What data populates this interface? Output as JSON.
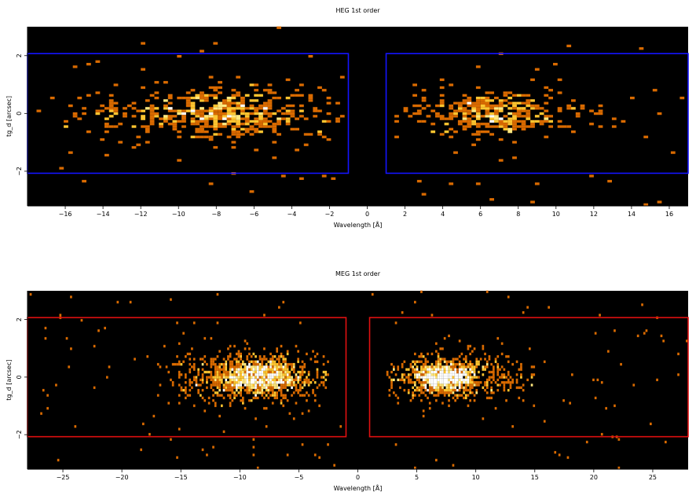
{
  "chart_data": [
    {
      "type": "heatmap",
      "title": "HEG 1st order",
      "xlabel": "Wavelength [Å]",
      "ylabel": "tg_d [arcsec]",
      "xlim": [
        -18,
        17
      ],
      "ylim": [
        -3.2,
        3.0
      ],
      "xticks": [
        -16,
        -14,
        -12,
        -10,
        -8,
        -6,
        -4,
        -2,
        0,
        2,
        4,
        6,
        8,
        10,
        12,
        14,
        16
      ],
      "yticks": [
        -2,
        0,
        2
      ],
      "background": "#000000",
      "colormap": [
        "#d96a00",
        "#ff9a00",
        "#ffc530",
        "#ffe880",
        "#ffffff"
      ],
      "regions": [
        {
          "x": [
            -18,
            -1
          ],
          "y": [
            -2.07,
            2.07
          ],
          "color": "#1414ff"
        },
        {
          "x": [
            1,
            17
          ],
          "y": [
            -2.07,
            2.07
          ],
          "color": "#1414ff"
        }
      ],
      "events": {
        "components": [
          {
            "count": 380,
            "center": -8.2,
            "xsd": 3.8,
            "ysd": 0.48,
            "xmin": -17.5,
            "xmax": -1.2
          },
          {
            "count": 170,
            "center": -7.4,
            "xsd": 1.4,
            "ysd": 0.35,
            "xmin": -12,
            "xmax": -3
          },
          {
            "count": 230,
            "center": 7.0,
            "xsd": 2.8,
            "ysd": 0.45,
            "xmin": 1.5,
            "xmax": 16.5
          },
          {
            "count": 120,
            "center": 6.8,
            "xsd": 1.0,
            "ysd": 0.3,
            "xmin": 4.5,
            "xmax": 9.5
          }
        ],
        "background_count": 85,
        "binning": [
          0.24,
          0.09
        ]
      }
    },
    {
      "type": "heatmap",
      "title": "MEG 1st order",
      "xlabel": "Wavelength [Å]",
      "ylabel": "tg_d [arcsec]",
      "xlim": [
        -28,
        28
      ],
      "ylim": [
        -3.2,
        3.0
      ],
      "xticks": [
        -25,
        -20,
        -15,
        -10,
        -5,
        0,
        5,
        10,
        15,
        20,
        25
      ],
      "yticks": [
        -2,
        0,
        2
      ],
      "background": "#000000",
      "colormap": [
        "#d96a00",
        "#ff9a00",
        "#ffc530",
        "#ffe880",
        "#ffffff"
      ],
      "regions": [
        {
          "x": [
            -28,
            -1
          ],
          "y": [
            -2.07,
            2.07
          ],
          "color": "#e01010"
        },
        {
          "x": [
            1,
            28
          ],
          "y": [
            -2.07,
            2.07
          ],
          "color": "#e01010"
        }
      ],
      "events": {
        "components": [
          {
            "count": 900,
            "center": -8.6,
            "xsd": 3.6,
            "ysd": 0.42,
            "xmin": -17,
            "xmax": -2.5
          },
          {
            "count": 550,
            "center": -8.5,
            "xsd": 1.6,
            "ysd": 0.28,
            "xmin": -12,
            "xmax": -5
          },
          {
            "count": 700,
            "center": 7.8,
            "xsd": 3.2,
            "ysd": 0.38,
            "xmin": 2.5,
            "xmax": 15
          },
          {
            "count": 650,
            "center": 7.2,
            "xsd": 1.2,
            "ysd": 0.25,
            "xmin": 4.5,
            "xmax": 10
          }
        ],
        "background_count": 160,
        "binning": [
          0.18,
          0.09
        ]
      }
    }
  ]
}
